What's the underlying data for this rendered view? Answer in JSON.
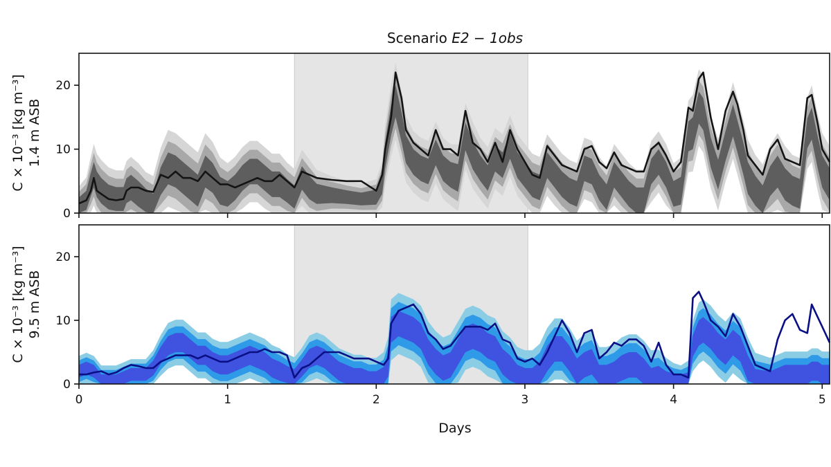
{
  "chart_data": [
    {
      "type": "line",
      "title_prefix": "Scenario ",
      "title_math": "E2 − 1obs",
      "ylabel_line1": "C × 10⁻³ [kg m⁻³]",
      "ylabel_line2": "1.4 m ASB",
      "xlim": [
        0,
        5.05
      ],
      "ylim": [
        0,
        25
      ],
      "yticks": [
        "0",
        "10",
        "20"
      ],
      "xticks": [
        "0",
        "1",
        "2",
        "3",
        "4",
        "5"
      ],
      "x_tick_labels_shown": false,
      "shaded_span": [
        1.45,
        3.02
      ],
      "colors": {
        "band_outer": "#d6d6d6",
        "band_mid": "#a8a8a8",
        "band_inner": "#5e5e5e",
        "observed": "#141414",
        "span": "#e5e5e5"
      },
      "x": [
        0,
        0.05,
        0.08,
        0.1,
        0.12,
        0.15,
        0.2,
        0.25,
        0.3,
        0.32,
        0.35,
        0.4,
        0.45,
        0.5,
        0.55,
        0.6,
        0.65,
        0.7,
        0.75,
        0.8,
        0.85,
        0.9,
        0.95,
        1.0,
        1.05,
        1.1,
        1.15,
        1.2,
        1.25,
        1.3,
        1.35,
        1.4,
        1.45,
        1.5,
        1.55,
        1.6,
        1.7,
        1.8,
        1.9,
        2.0,
        2.04,
        2.06,
        2.1,
        2.13,
        2.17,
        2.2,
        2.25,
        2.3,
        2.35,
        2.4,
        2.45,
        2.5,
        2.55,
        2.6,
        2.65,
        2.7,
        2.75,
        2.8,
        2.85,
        2.9,
        2.95,
        3.0,
        3.05,
        3.1,
        3.15,
        3.2,
        3.25,
        3.3,
        3.35,
        3.4,
        3.45,
        3.5,
        3.55,
        3.6,
        3.65,
        3.7,
        3.75,
        3.8,
        3.85,
        3.9,
        3.95,
        4.0,
        4.05,
        4.1,
        4.13,
        4.17,
        4.2,
        4.25,
        4.3,
        4.35,
        4.4,
        4.43,
        4.47,
        4.5,
        4.55,
        4.6,
        4.65,
        4.7,
        4.75,
        4.8,
        4.85,
        4.9,
        4.93,
        4.97,
        5.0,
        5.05
      ],
      "series": [
        {
          "values": [
            1.5,
            2.0,
            3.5,
            5.5,
            3.5,
            3.0,
            2.2,
            2.0,
            2.2,
            3.5,
            4.0,
            4.0,
            3.5,
            3.3,
            6.0,
            5.5,
            6.5,
            5.5,
            5.5,
            5.0,
            6.5,
            5.5,
            4.5,
            4.5,
            4.0,
            4.5,
            5.0,
            5.5,
            5.0,
            5.0,
            6.0,
            5.0,
            4.0,
            6.5,
            6.0,
            5.5,
            5.2,
            5.0,
            5.0,
            3.5,
            6.0,
            10.0,
            15.0,
            22.0,
            18.0,
            13.0,
            11.0,
            10.0,
            9.0,
            13.0,
            10.0,
            10.0,
            9.0,
            16.0,
            11.0,
            10.0,
            8.0,
            11.0,
            8.0,
            13.0,
            10.0,
            8.0,
            6.0,
            5.5,
            10.5,
            9.0,
            7.5,
            7.0,
            6.5,
            10.0,
            10.5,
            8.0,
            7.0,
            9.5,
            7.5,
            7.0,
            6.5,
            6.5,
            10.0,
            11.0,
            9.0,
            6.5,
            8.0,
            16.5,
            16.0,
            21.0,
            22.0,
            15.0,
            10.0,
            16.0,
            19.0,
            17.0,
            13.0,
            9.0,
            7.5,
            6.0,
            10.0,
            11.5,
            8.5,
            8.0,
            7.5,
            18.0,
            18.5,
            14.0,
            10.0,
            8.0
          ]
        },
        {
          "values": [
            2.0,
            3.5,
            6.5,
            8.0,
            6.5,
            5.5,
            4.5,
            4.0,
            4.0,
            5.5,
            6.0,
            5.0,
            4.0,
            2.5,
            7.5,
            9.5,
            9.0,
            8.0,
            7.0,
            6.0,
            9.0,
            8.0,
            5.5,
            5.0,
            6.0,
            7.5,
            8.5,
            8.5,
            7.5,
            6.5,
            6.5,
            5.5,
            4.0,
            7.5,
            6.0,
            4.5,
            4.0,
            3.5,
            3.2,
            3.5,
            6.0,
            11.0,
            17.0,
            20.0,
            16.0,
            12.0,
            10.0,
            9.0,
            8.5,
            11.5,
            9.0,
            8.0,
            7.5,
            14.5,
            11.0,
            9.0,
            7.5,
            10.5,
            9.5,
            12.5,
            9.5,
            8.0,
            6.5,
            6.0,
            9.5,
            8.0,
            6.5,
            5.5,
            5.0,
            9.0,
            8.5,
            6.0,
            4.5,
            8.0,
            6.5,
            5.0,
            4.0,
            4.0,
            8.5,
            10.0,
            8.0,
            5.0,
            5.5,
            14.5,
            15.0,
            19.0,
            18.0,
            12.0,
            8.0,
            13.0,
            17.0,
            14.5,
            11.0,
            8.0,
            6.0,
            4.0,
            7.5,
            9.0,
            7.0,
            6.0,
            5.0,
            15.0,
            16.5,
            12.0,
            9.0,
            7.0
          ]
        },
        {
          "values": [
            1.2,
            2.0,
            4.5,
            6.0,
            4.5,
            3.5,
            2.5,
            2.2,
            2.2,
            3.5,
            4.0,
            3.0,
            2.0,
            1.0,
            5.0,
            7.0,
            6.5,
            5.5,
            4.5,
            3.5,
            6.5,
            5.5,
            3.5,
            3.0,
            4.0,
            5.5,
            6.5,
            6.5,
            5.5,
            4.5,
            4.5,
            3.5,
            2.5,
            5.5,
            4.0,
            3.0,
            2.8,
            2.5,
            2.2,
            2.5,
            4.5,
            9.0,
            14.5,
            17.5,
            13.5,
            10.0,
            8.0,
            7.0,
            6.5,
            9.5,
            7.0,
            6.0,
            5.5,
            12.0,
            9.0,
            7.0,
            5.5,
            8.5,
            7.5,
            10.5,
            7.5,
            6.0,
            4.5,
            4.0,
            7.5,
            6.0,
            4.5,
            3.5,
            3.0,
            7.0,
            6.5,
            4.0,
            2.5,
            6.0,
            4.5,
            3.0,
            2.0,
            2.0,
            6.5,
            8.0,
            6.0,
            3.0,
            3.5,
            12.0,
            12.5,
            16.5,
            15.5,
            9.5,
            6.0,
            10.5,
            14.5,
            12.0,
            8.5,
            5.5,
            3.5,
            2.0,
            5.0,
            6.5,
            4.5,
            3.5,
            3.0,
            12.5,
            14.0,
            9.5,
            6.5,
            4.5
          ]
        }
      ]
    },
    {
      "type": "line",
      "ylabel_line1": "C × 10⁻³ [kg m⁻³]",
      "ylabel_line2": "9.5 m ASB",
      "xlabel": "Days",
      "xlim": [
        0,
        5.05
      ],
      "ylim": [
        0,
        25
      ],
      "yticks": [
        "0",
        "10",
        "20"
      ],
      "xticks": [
        "0",
        "1",
        "2",
        "3",
        "4",
        "5"
      ],
      "shaded_span": [
        1.45,
        3.02
      ],
      "colors": {
        "band_outer": "#8ccde6",
        "band_mid": "#2e9ae8",
        "band_inner": "#3f52e0",
        "observed": "#0a0f85",
        "span": "#e5e5e5"
      },
      "x": [
        0,
        0.05,
        0.1,
        0.15,
        0.2,
        0.25,
        0.3,
        0.35,
        0.4,
        0.45,
        0.5,
        0.55,
        0.6,
        0.65,
        0.7,
        0.75,
        0.8,
        0.85,
        0.9,
        0.95,
        1.0,
        1.05,
        1.1,
        1.15,
        1.2,
        1.25,
        1.3,
        1.35,
        1.4,
        1.45,
        1.5,
        1.55,
        1.6,
        1.65,
        1.7,
        1.75,
        1.8,
        1.85,
        1.9,
        1.95,
        2.0,
        2.05,
        2.08,
        2.1,
        2.15,
        2.2,
        2.25,
        2.3,
        2.35,
        2.4,
        2.45,
        2.5,
        2.55,
        2.6,
        2.65,
        2.7,
        2.75,
        2.8,
        2.85,
        2.9,
        2.95,
        3.0,
        3.05,
        3.1,
        3.15,
        3.2,
        3.25,
        3.3,
        3.35,
        3.4,
        3.45,
        3.5,
        3.55,
        3.6,
        3.65,
        3.7,
        3.75,
        3.8,
        3.85,
        3.9,
        3.95,
        4.0,
        4.05,
        4.1,
        4.13,
        4.17,
        4.2,
        4.25,
        4.3,
        4.35,
        4.4,
        4.45,
        4.5,
        4.55,
        4.6,
        4.65,
        4.7,
        4.75,
        4.8,
        4.85,
        4.9,
        4.93,
        4.97,
        5.0,
        5.05
      ],
      "series": [
        {
          "values": [
            1.5,
            1.5,
            1.8,
            2.0,
            1.5,
            1.8,
            2.5,
            3.0,
            2.8,
            2.5,
            2.5,
            3.5,
            4.0,
            4.5,
            4.5,
            4.5,
            4.0,
            4.5,
            4.0,
            3.5,
            3.5,
            4.0,
            4.5,
            5.0,
            5.0,
            5.5,
            5.0,
            5.0,
            4.5,
            1.0,
            2.5,
            3.0,
            4.0,
            5.0,
            5.0,
            5.0,
            4.5,
            4.0,
            4.0,
            4.0,
            3.5,
            3.0,
            4.0,
            9.5,
            11.5,
            12.0,
            12.5,
            11.0,
            8.0,
            7.0,
            5.5,
            6.0,
            7.5,
            9.0,
            9.0,
            9.0,
            8.5,
            9.5,
            7.0,
            6.5,
            4.0,
            3.5,
            4.0,
            3.0,
            5.0,
            7.5,
            10.0,
            8.0,
            5.0,
            8.0,
            8.5,
            4.0,
            5.0,
            6.5,
            6.0,
            7.0,
            7.0,
            6.0,
            3.5,
            6.5,
            3.0,
            1.5,
            1.5,
            1.0,
            13.5,
            14.5,
            13.0,
            10.0,
            9.0,
            7.5,
            11.0,
            9.0,
            6.0,
            3.0,
            2.5,
            2.0,
            7.0,
            10.0,
            11.0,
            8.5,
            8.0,
            12.5,
            10.5,
            9.0,
            6.5
          ]
        },
        {
          "values": [
            2.5,
            3.0,
            2.5,
            1.0,
            1.5,
            1.5,
            2.0,
            2.5,
            2.5,
            2.5,
            3.5,
            6.0,
            7.5,
            8.0,
            8.0,
            7.0,
            6.0,
            6.0,
            5.0,
            4.5,
            4.5,
            5.0,
            5.5,
            6.0,
            5.5,
            5.0,
            4.0,
            3.5,
            3.0,
            2.0,
            4.0,
            5.5,
            6.0,
            5.5,
            4.5,
            3.5,
            3.0,
            2.5,
            2.5,
            2.0,
            2.0,
            2.5,
            5.0,
            10.5,
            11.5,
            11.0,
            10.5,
            9.5,
            7.0,
            5.5,
            4.5,
            5.0,
            7.0,
            9.0,
            9.5,
            9.0,
            8.0,
            7.5,
            5.5,
            4.5,
            3.0,
            2.5,
            2.5,
            3.5,
            6.0,
            7.5,
            7.5,
            6.0,
            4.0,
            5.0,
            5.5,
            3.0,
            3.0,
            3.5,
            4.5,
            5.0,
            5.0,
            4.0,
            2.5,
            3.0,
            2.0,
            1.5,
            1.5,
            1.5,
            8.0,
            10.0,
            10.5,
            9.5,
            8.0,
            7.0,
            8.5,
            7.5,
            4.5,
            2.5,
            2.0,
            2.0,
            2.5,
            3.0,
            3.0,
            3.0,
            3.0,
            3.5,
            3.5,
            3.0,
            3.0
          ]
        },
        {
          "values": [
            2.0,
            2.5,
            2.0,
            0.5,
            0.5,
            0.5,
            1.0,
            1.5,
            1.5,
            1.5,
            2.5,
            4.5,
            6.0,
            6.5,
            6.5,
            5.5,
            4.5,
            4.5,
            3.5,
            3.0,
            3.0,
            3.5,
            4.0,
            4.5,
            4.0,
            3.5,
            2.5,
            2.0,
            1.5,
            1.0,
            2.5,
            4.0,
            4.5,
            4.0,
            3.0,
            2.0,
            1.5,
            1.0,
            1.0,
            0.5,
            0.5,
            1.0,
            3.0,
            8.5,
            9.5,
            9.0,
            8.5,
            7.5,
            5.0,
            3.5,
            2.5,
            3.0,
            5.0,
            7.0,
            7.5,
            7.0,
            6.0,
            5.5,
            3.5,
            2.5,
            1.0,
            0.5,
            0.5,
            1.5,
            4.0,
            5.5,
            5.5,
            4.0,
            2.0,
            3.0,
            3.5,
            1.0,
            1.0,
            1.5,
            2.5,
            3.0,
            3.0,
            2.0,
            0.5,
            1.0,
            0.5,
            0.5,
            0.5,
            0.5,
            6.0,
            8.0,
            8.5,
            7.5,
            6.0,
            5.0,
            6.5,
            5.5,
            2.5,
            0.5,
            0.5,
            0.5,
            1.0,
            1.5,
            1.5,
            1.5,
            1.5,
            2.0,
            2.0,
            1.5,
            1.5
          ]
        }
      ]
    }
  ]
}
